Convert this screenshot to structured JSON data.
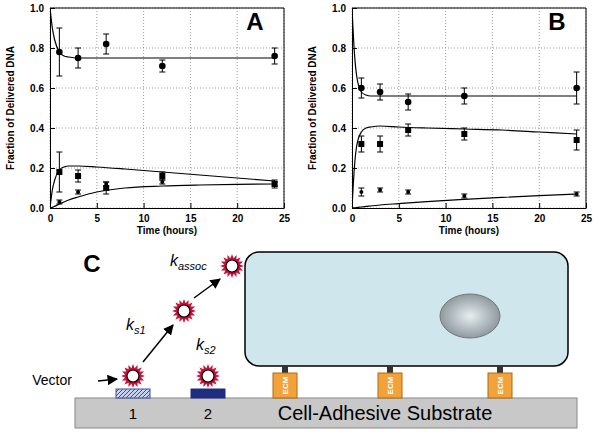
{
  "chart_data": [
    {
      "type": "scatter",
      "title": "A",
      "x_label": "Time (hours)",
      "y_label": "Fraction of Delivered DNA",
      "xlim": [
        0,
        25
      ],
      "ylim": [
        0,
        1
      ],
      "xticks": [
        0,
        5,
        10,
        15,
        20,
        25
      ],
      "yticks": [
        {
          "value": 0,
          "label": "0.0"
        },
        0.2,
        0.4,
        0.6,
        0.8,
        {
          "value": 1,
          "label": "1.0"
        }
      ],
      "grid": true,
      "series": [
        {
          "type": "scatter",
          "marker": "circle",
          "color": "#000000",
          "x": [
            1,
            3,
            6,
            12,
            24
          ],
          "values": [
            0.78,
            0.75,
            0.82,
            0.71,
            0.76
          ],
          "errors": [
            0.12,
            0.05,
            0.05,
            0.03,
            0.04
          ]
        },
        {
          "type": "scatter",
          "marker": "square",
          "color": "#000000",
          "x": [
            1,
            3,
            6,
            12,
            24
          ],
          "values": [
            0.18,
            0.16,
            0.1,
            0.16,
            0.12
          ],
          "errors": [
            0.1,
            0.03,
            0.03,
            0.02,
            0.02
          ]
        },
        {
          "type": "scatter",
          "marker": "dot",
          "color": "#000000",
          "x": [
            1,
            3,
            6,
            12,
            24
          ],
          "values": [
            0.03,
            0.08,
            0.12,
            0.13,
            0.12
          ],
          "errors": [
            0.01,
            0.01,
            0.01,
            0.01,
            0.01
          ]
        },
        {
          "type": "line",
          "line_style": "solid",
          "color": "#000000",
          "x": [
            0,
            0.25,
            0.5,
            1,
            1.5,
            2,
            3,
            5,
            8,
            12,
            16,
            20,
            24
          ],
          "values": [
            1.0,
            0.9,
            0.84,
            0.78,
            0.76,
            0.755,
            0.75,
            0.75,
            0.75,
            0.75,
            0.75,
            0.75,
            0.75
          ]
        },
        {
          "type": "line",
          "line_style": "solid",
          "color": "#000000",
          "x": [
            0,
            0.25,
            0.5,
            1,
            1.5,
            2,
            3,
            5,
            8,
            12,
            16,
            20,
            24
          ],
          "values": [
            0,
            0.09,
            0.14,
            0.19,
            0.205,
            0.21,
            0.21,
            0.205,
            0.195,
            0.18,
            0.165,
            0.15,
            0.135
          ]
        },
        {
          "type": "line",
          "line_style": "solid",
          "color": "#000000",
          "x": [
            0,
            0.25,
            0.5,
            1,
            1.5,
            2,
            3,
            5,
            8,
            12,
            16,
            20,
            24
          ],
          "values": [
            0,
            0.003,
            0.008,
            0.02,
            0.03,
            0.04,
            0.055,
            0.08,
            0.1,
            0.11,
            0.115,
            0.118,
            0.12
          ]
        }
      ]
    },
    {
      "type": "scatter",
      "title": "B",
      "x_label": "Time (hours)",
      "y_label": "Fraction of Delivered DNA",
      "xlim": [
        0,
        25
      ],
      "ylim": [
        0,
        1
      ],
      "xticks": [
        0,
        5,
        10,
        15,
        20,
        25
      ],
      "yticks": [
        {
          "value": 0,
          "label": "0.0"
        },
        0.2,
        0.4,
        0.6,
        0.8,
        {
          "value": 1,
          "label": "1.0"
        }
      ],
      "grid": true,
      "series": [
        {
          "type": "scatter",
          "marker": "circle",
          "color": "#000000",
          "x": [
            1,
            3,
            6,
            12,
            24
          ],
          "values": [
            0.6,
            0.58,
            0.53,
            0.56,
            0.6
          ],
          "errors": [
            0.05,
            0.04,
            0.04,
            0.04,
            0.08
          ]
        },
        {
          "type": "scatter",
          "marker": "square",
          "color": "#000000",
          "x": [
            1,
            3,
            6,
            12,
            24
          ],
          "values": [
            0.32,
            0.32,
            0.39,
            0.37,
            0.34
          ],
          "errors": [
            0.04,
            0.04,
            0.03,
            0.03,
            0.05
          ]
        },
        {
          "type": "scatter",
          "marker": "dot",
          "color": "#000000",
          "x": [
            1,
            3,
            6,
            12,
            24
          ],
          "values": [
            0.08,
            0.09,
            0.08,
            0.06,
            0.07
          ],
          "errors": [
            0.02,
            0.01,
            0.01,
            0.01,
            0.01
          ]
        },
        {
          "type": "line",
          "line_style": "solid",
          "color": "#000000",
          "x": [
            0,
            0.25,
            0.5,
            1,
            1.5,
            2,
            3,
            5,
            8,
            12,
            16,
            20,
            24
          ],
          "values": [
            1.0,
            0.78,
            0.66,
            0.58,
            0.565,
            0.56,
            0.56,
            0.56,
            0.56,
            0.56,
            0.56,
            0.56,
            0.56
          ]
        },
        {
          "type": "line",
          "line_style": "solid",
          "color": "#000000",
          "x": [
            0,
            0.25,
            0.5,
            1,
            1.5,
            2,
            3,
            5,
            8,
            12,
            16,
            20,
            24
          ],
          "values": [
            0,
            0.2,
            0.31,
            0.38,
            0.4,
            0.405,
            0.41,
            0.405,
            0.4,
            0.395,
            0.39,
            0.38,
            0.37
          ]
        },
        {
          "type": "line",
          "line_style": "solid",
          "color": "#000000",
          "x": [
            0,
            0.25,
            0.5,
            1,
            1.5,
            2,
            3,
            5,
            8,
            12,
            16,
            20,
            24
          ],
          "values": [
            0,
            0.001,
            0.002,
            0.005,
            0.008,
            0.01,
            0.015,
            0.022,
            0.032,
            0.043,
            0.053,
            0.062,
            0.07
          ]
        }
      ]
    }
  ],
  "diagram": {
    "label": "C",
    "rates": [
      {
        "symbol": "k",
        "subscript": "s1"
      },
      {
        "symbol": "k",
        "subscript": "assoc"
      },
      {
        "symbol": "k",
        "subscript": "s2"
      }
    ],
    "vector_label": "Vector",
    "sites": [
      "1",
      "2"
    ],
    "ecm": [
      "ECM",
      "ECM",
      "ECM"
    ],
    "substrate": "Cell-Adhesive Substrate"
  }
}
